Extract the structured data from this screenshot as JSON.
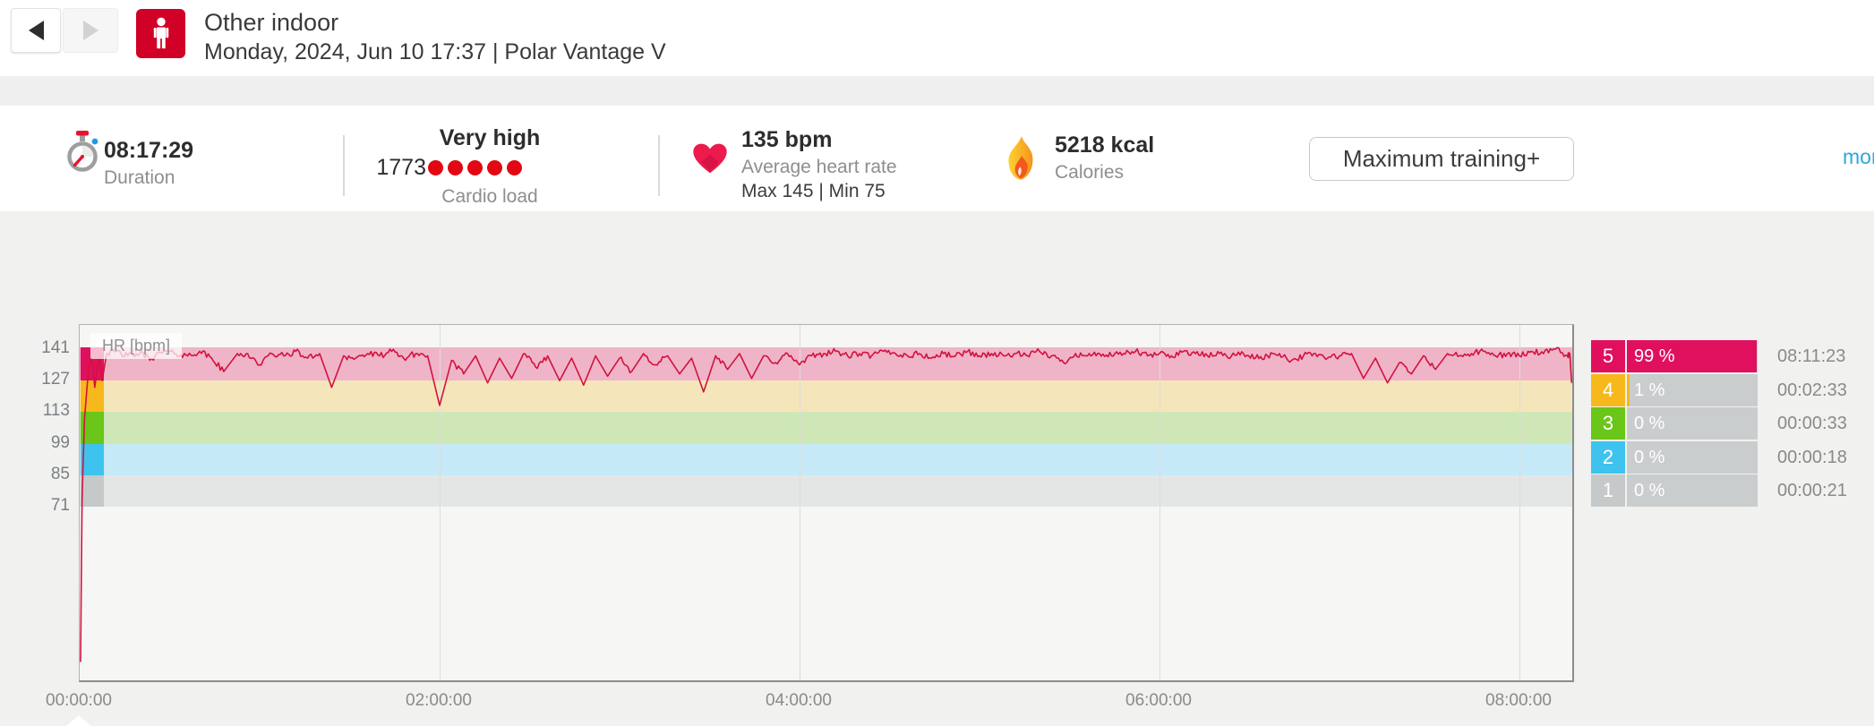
{
  "header": {
    "title": "Other indoor",
    "subtitle": "Monday, 2024, Jun 10 17:37  |  Polar Vantage V"
  },
  "stats": {
    "duration": {
      "value": "08:17:29",
      "label": "Duration"
    },
    "cardio_load": {
      "level": "Very high",
      "value": "1773",
      "dots": 5,
      "dot_color": "#e30613",
      "label": "Cardio load"
    },
    "heart_rate": {
      "value": "135 bpm",
      "label": "Average heart rate",
      "max_min": "Max 145  |  Min 75"
    },
    "calories": {
      "value": "5218 kcal",
      "label": "Calories"
    },
    "benefit_button": "Maximum training+",
    "more_link": "more"
  },
  "chart_data": {
    "type": "line",
    "title": "HR [bpm]",
    "ylabel": "HR [bpm]",
    "line_color": "#d2123d",
    "y_ticks": [
      141,
      127,
      113,
      99,
      85,
      71
    ],
    "x_tick_labels": [
      "00:00:00",
      "02:00:00",
      "04:00:00",
      "06:00:00",
      "08:00:00"
    ],
    "total_duration": "08:17:29",
    "avg_hr_bpm": 135,
    "max_hr_bpm": 145,
    "min_hr_bpm": 75,
    "sample_interval_min": 4,
    "hr_values": [
      75,
      139,
      138,
      140,
      138,
      139,
      137,
      140,
      139,
      138,
      140,
      137,
      131,
      138,
      139,
      134,
      139,
      138,
      140,
      137,
      139,
      124,
      138,
      137,
      139,
      138,
      140,
      137,
      139,
      138,
      116,
      136,
      130,
      138,
      126,
      137,
      128,
      139,
      133,
      138,
      127,
      137,
      125,
      138,
      129,
      137,
      131,
      139,
      134,
      138,
      130,
      137,
      122,
      138,
      132,
      139,
      128,
      138,
      135,
      139,
      134,
      138,
      139,
      140,
      138,
      139,
      138,
      140,
      139,
      138,
      139,
      137,
      139,
      138,
      140,
      138,
      139,
      138,
      139,
      138,
      140,
      138,
      135,
      139,
      138,
      139,
      138,
      139,
      140,
      138,
      139,
      138,
      140,
      139,
      138,
      139,
      138,
      139,
      137,
      138,
      139,
      136,
      138,
      139,
      137,
      138,
      139,
      128,
      137,
      126,
      135,
      130,
      138,
      132,
      139,
      138,
      139,
      140,
      138,
      139,
      138,
      140,
      139,
      141,
      138
    ],
    "start_points_hr": [
      2,
      75,
      110,
      133
    ],
    "end_point": {
      "t_min": 497.4,
      "hr": 126
    },
    "zones": [
      {
        "zone": "5",
        "hr_range": "127-141",
        "color": "#e0105f",
        "band_color": "#f0b4c8",
        "percent": "99 %",
        "time": "08:11:23"
      },
      {
        "zone": "4",
        "hr_range": "113-127",
        "color": "#f7b81b",
        "band_color": "#f5e5bb",
        "percent": "1 %",
        "time": "00:02:33"
      },
      {
        "zone": "3",
        "hr_range": "99-113",
        "color": "#6ac618",
        "band_color": "#cfe7b7",
        "percent": "0 %",
        "time": "00:00:33"
      },
      {
        "zone": "2",
        "hr_range": "85-99",
        "color": "#3ec3ee",
        "band_color": "#c6e9f7",
        "percent": "0 %",
        "time": "00:00:18"
      },
      {
        "zone": "1",
        "hr_range": "71-85",
        "color": "#c5c9ca",
        "band_color": "#e4e6e6",
        "percent": "0 %",
        "time": "00:00:21"
      }
    ]
  }
}
